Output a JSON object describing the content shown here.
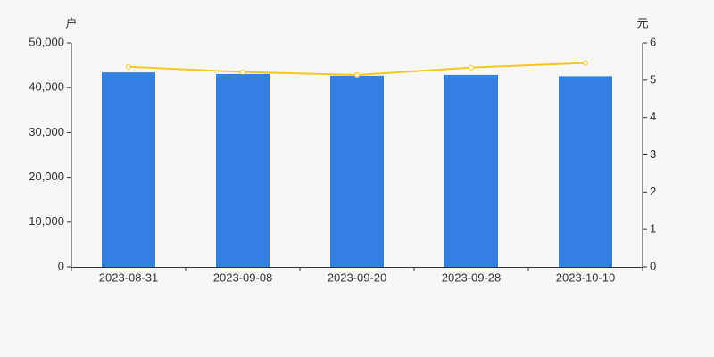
{
  "chart_data": {
    "type": "bar",
    "y_label": "户",
    "y2_label": "元",
    "categories": [
      "2023-08-31",
      "2023-09-08",
      "2023-09-20",
      "2023-09-28",
      "2023-10-10"
    ],
    "series": [
      {
        "type": "bar",
        "color": "#3481e3",
        "values": [
          43400,
          43050,
          42650,
          42850,
          42550
        ]
      },
      {
        "type": "line",
        "axis": "y2",
        "color": "#f6c623",
        "values": [
          5.36,
          5.22,
          5.14,
          5.34,
          5.46
        ]
      }
    ],
    "ylim": [
      0,
      50000
    ],
    "yticks": [
      0,
      {
        "value": 10000,
        "label": "10,000"
      },
      {
        "value": 20000,
        "label": "20,000"
      },
      {
        "value": 30000,
        "label": "30,000"
      },
      {
        "value": 40000,
        "label": "40,000"
      },
      {
        "value": 50000,
        "label": "50,000"
      }
    ],
    "y2lim": [
      0,
      6
    ],
    "y2ticks": [
      0,
      1,
      2,
      3,
      4,
      5,
      6
    ]
  }
}
